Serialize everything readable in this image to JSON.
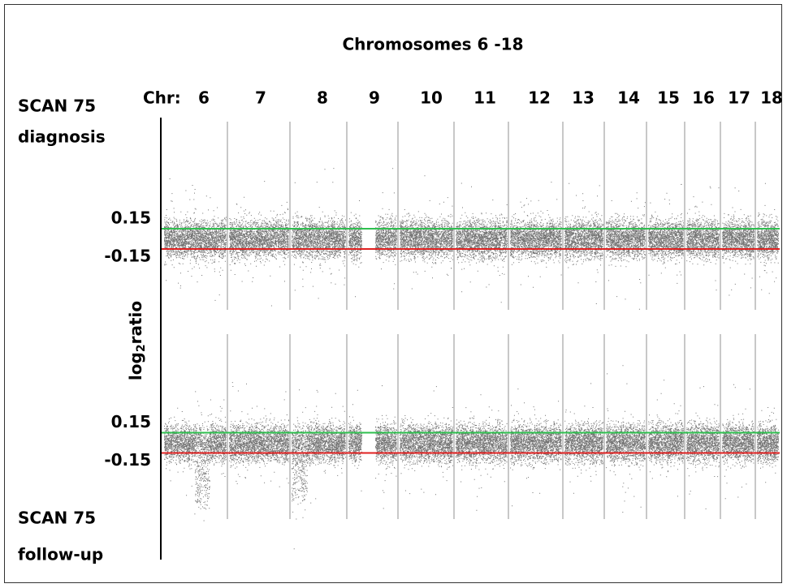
{
  "title": "Chromosomes 6 -18",
  "chr_label": "Chr:",
  "chromosomes": [
    "6",
    "7",
    "8",
    "9",
    "10",
    "11",
    "12",
    "13",
    "14",
    "15",
    "16",
    "17",
    "18"
  ],
  "y_label": {
    "main": "log",
    "sub": "2",
    "rest": "ratio"
  },
  "panels": [
    {
      "line1": "SCAN 75",
      "line2": "diagnosis",
      "ticks": [
        0.15,
        -0.15
      ]
    },
    {
      "line1": "SCAN 75",
      "line2": "follow-up",
      "ticks": [
        0.15,
        -0.15
      ]
    }
  ]
}
